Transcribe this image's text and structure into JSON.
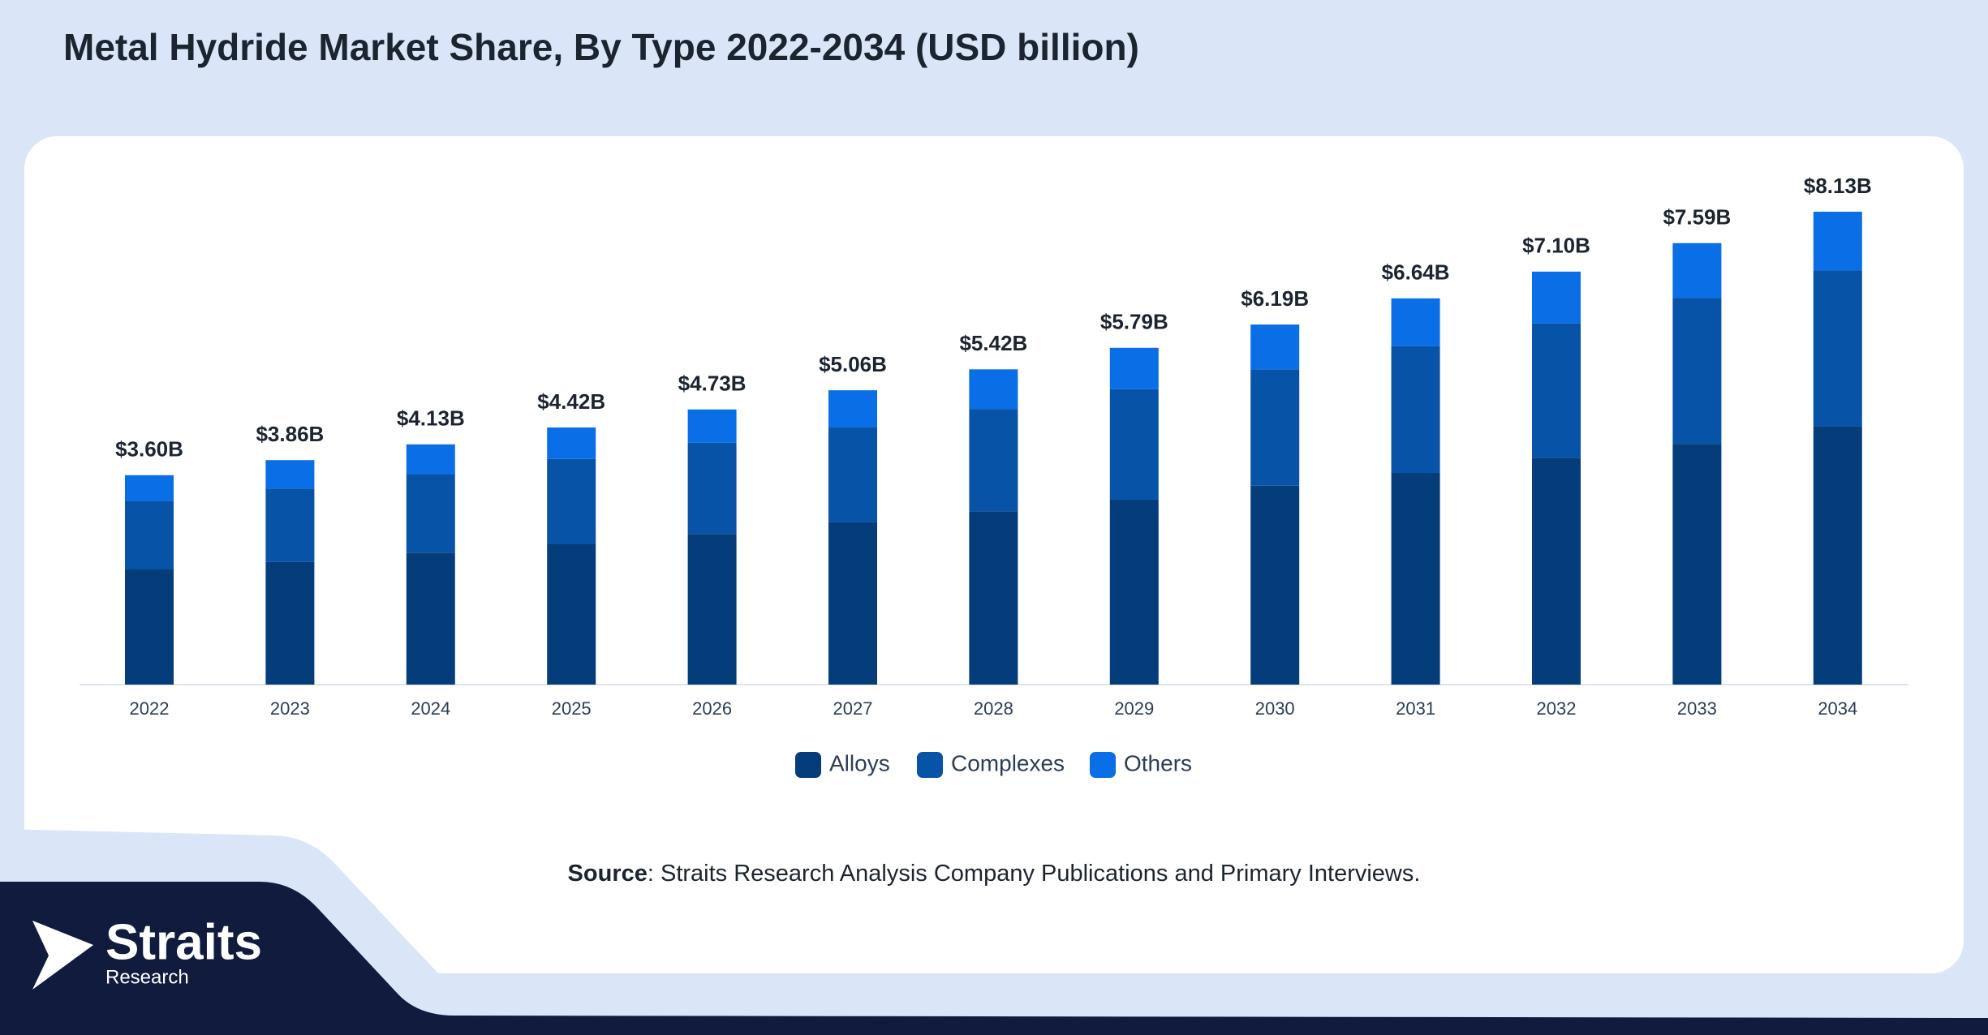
{
  "chart_data": {
    "type": "bar",
    "stacked": true,
    "title": "Metal Hydride Market Share, By Type 2022-2034 (USD billion)",
    "categories": [
      "2022",
      "2023",
      "2024",
      "2025",
      "2026",
      "2027",
      "2028",
      "2029",
      "2030",
      "2031",
      "2032",
      "2033",
      "2034"
    ],
    "series": [
      {
        "name": "Alloys",
        "color": "#053d7a",
        "values": [
          1.98,
          2.11,
          2.27,
          2.42,
          2.59,
          2.79,
          2.98,
          3.18,
          3.42,
          3.64,
          3.9,
          4.14,
          4.44
        ]
      },
      {
        "name": "Complexes",
        "color": "#0753a8",
        "values": [
          1.18,
          1.26,
          1.35,
          1.46,
          1.57,
          1.63,
          1.76,
          1.9,
          2.0,
          2.18,
          2.31,
          2.51,
          2.68
        ]
      },
      {
        "name": "Others",
        "color": "#0a6ee6",
        "values": [
          0.44,
          0.49,
          0.51,
          0.54,
          0.57,
          0.64,
          0.68,
          0.71,
          0.77,
          0.82,
          0.89,
          0.94,
          1.01
        ]
      }
    ],
    "totals": {
      "values": [
        3.6,
        3.86,
        4.13,
        4.42,
        4.73,
        5.06,
        5.42,
        5.79,
        6.19,
        6.64,
        7.1,
        7.59,
        8.13
      ],
      "value_labels": [
        "$3.60B",
        "$3.86B",
        "$4.13B",
        "$4.42B",
        "$4.73B",
        "$5.06B",
        "$5.42B",
        "$5.79B",
        "$6.19B",
        "$6.64B",
        "$7.10B",
        "$7.59B",
        "$8.13B"
      ]
    },
    "legend": "bottom",
    "source": {
      "label": "Source",
      "text": ": Straits Research Analysis Company Publications and Primary Interviews."
    }
  },
  "logo": {
    "name": "Straits",
    "sub": "Research"
  }
}
